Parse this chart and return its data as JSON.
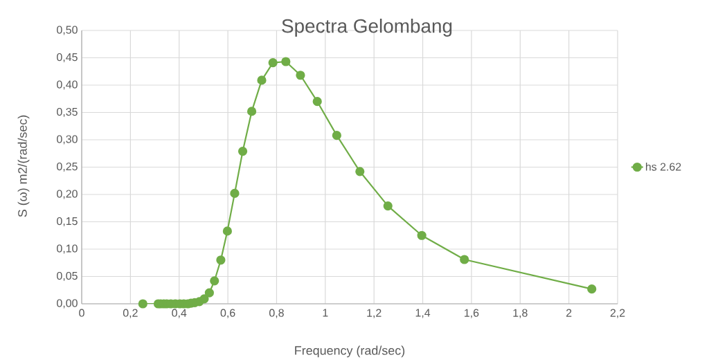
{
  "chart_data": {
    "type": "line",
    "title": "Spectra Gelombang",
    "xlabel": "Frequency (rad/sec)",
    "ylabel": "S (ω) m2/(rad/sec)",
    "series": [
      {
        "name": "hs 2.62",
        "color": "#70ad47",
        "x": [
          0.251,
          0.314,
          0.324,
          0.337,
          0.349,
          0.366,
          0.384,
          0.403,
          0.419,
          0.436,
          0.449,
          0.464,
          0.483,
          0.503,
          0.524,
          0.545,
          0.571,
          0.598,
          0.628,
          0.661,
          0.698,
          0.739,
          0.785,
          0.838,
          0.898,
          0.967,
          1.047,
          1.142,
          1.257,
          1.396,
          1.571,
          2.094
        ],
        "values": [
          0.0,
          0.0,
          0.0,
          0.0,
          0.0,
          0.0,
          0.0,
          0.0,
          0.0,
          0.0,
          0.001,
          0.002,
          0.004,
          0.009,
          0.02,
          0.042,
          0.08,
          0.133,
          0.202,
          0.279,
          0.352,
          0.409,
          0.441,
          0.443,
          0.418,
          0.37,
          0.308,
          0.242,
          0.179,
          0.125,
          0.081,
          0.027
        ]
      }
    ],
    "xlim": [
      0,
      2.2
    ],
    "ylim": [
      0,
      0.5
    ],
    "xticks": [
      0,
      {
        "value": 0.2,
        "label": "0,2"
      },
      {
        "value": 0.4,
        "label": "0,4"
      },
      {
        "value": 0.6,
        "label": "0,6"
      },
      {
        "value": 0.8,
        "label": "0,8"
      },
      1,
      {
        "value": 1.2,
        "label": "1,2"
      },
      {
        "value": 1.4,
        "label": "1,4"
      },
      {
        "value": 1.6,
        "label": "1,6"
      },
      {
        "value": 1.8,
        "label": "1,8"
      },
      2,
      {
        "value": 2.2,
        "label": "2,2"
      }
    ],
    "yticks": [
      {
        "value": 0,
        "label": "0,00"
      },
      {
        "value": 0.05,
        "label": "0,05"
      },
      {
        "value": 0.1,
        "label": "0,10"
      },
      {
        "value": 0.15,
        "label": "0,15"
      },
      {
        "value": 0.2,
        "label": "0,20"
      },
      {
        "value": 0.25,
        "label": "0,25"
      },
      {
        "value": 0.3,
        "label": "0,30"
      },
      {
        "value": 0.35,
        "label": "0,35"
      },
      {
        "value": 0.4,
        "label": "0,40"
      },
      {
        "value": 0.45,
        "label": "0,45"
      },
      {
        "value": 0.5,
        "label": "0,50"
      }
    ],
    "grid": true,
    "legend": "right",
    "marker": "circle",
    "line_style": "solid"
  }
}
